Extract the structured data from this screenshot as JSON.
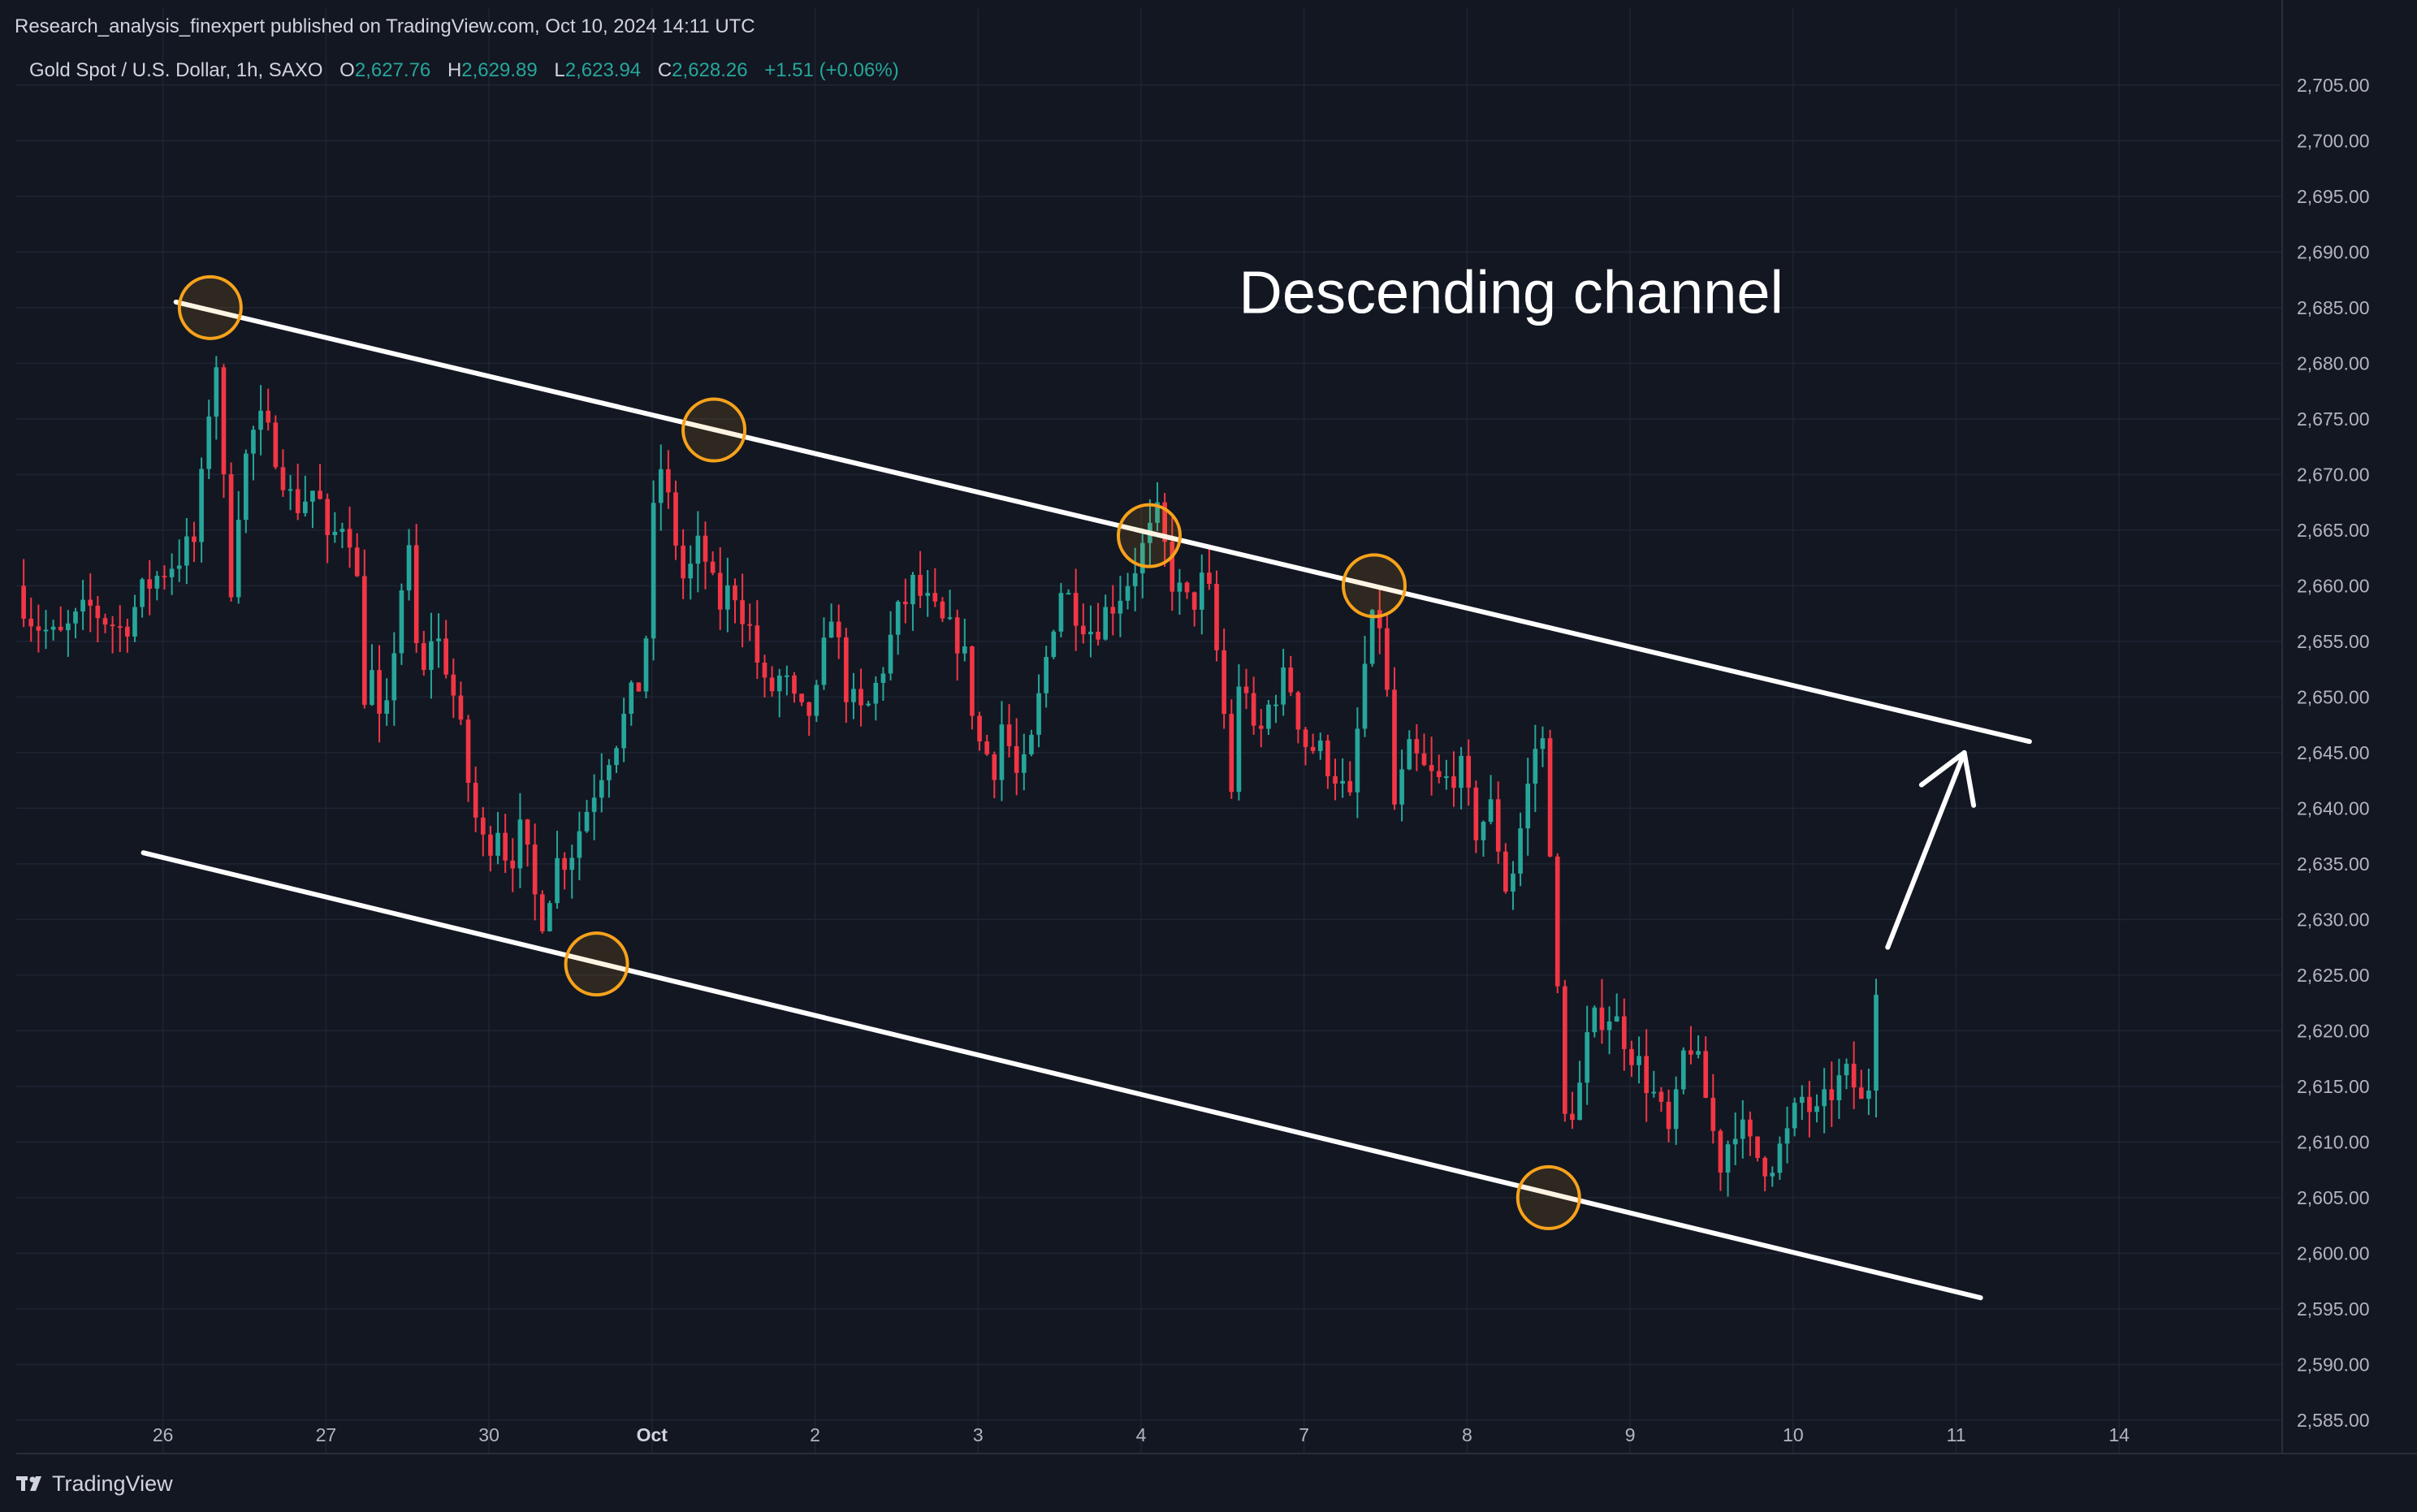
{
  "header": {
    "published": "Research_analysis_finexpert published on TradingView.com, Oct 10, 2024 14:11 UTC",
    "symbol": "Gold Spot / U.S. Dollar, 1h, SAXO",
    "o_label": "O",
    "o_value": "2,627.76",
    "h_label": "H",
    "h_value": "2,629.89",
    "l_label": "L",
    "l_value": "2,623.94",
    "c_label": "C",
    "c_value": "2,628.26",
    "change": "+1.51 (+0.06%)"
  },
  "brand": {
    "name": "TradingView"
  },
  "colors": {
    "background": "#131722",
    "up": "#26a69a",
    "down": "#f23645",
    "grid": "#1f2433",
    "channel": "#ffffff",
    "marker": "#f7a21b"
  },
  "chart_data": {
    "type": "candlestick",
    "title": "Gold Spot / U.S. Dollar, 1h, SAXO",
    "x_ticks": [
      {
        "label": "26",
        "t": 0.5,
        "bold": false
      },
      {
        "label": "27",
        "t": 1.5,
        "bold": false
      },
      {
        "label": "30",
        "t": 2.5,
        "bold": false
      },
      {
        "label": "Oct",
        "t": 3.5,
        "bold": true
      },
      {
        "label": "2",
        "t": 4.5,
        "bold": false
      },
      {
        "label": "3",
        "t": 5.5,
        "bold": false
      },
      {
        "label": "4",
        "t": 6.5,
        "bold": false
      },
      {
        "label": "7",
        "t": 7.5,
        "bold": false
      },
      {
        "label": "8",
        "t": 8.5,
        "bold": false
      },
      {
        "label": "9",
        "t": 9.5,
        "bold": false
      },
      {
        "label": "10",
        "t": 10.5,
        "bold": false
      },
      {
        "label": "11",
        "t": 11.5,
        "bold": false
      },
      {
        "label": "14",
        "t": 12.5,
        "bold": false
      }
    ],
    "x_range": [
      -0.4,
      13.5
    ],
    "y_range": [
      2582,
      2709
    ],
    "y_ticks": [
      2585,
      2590,
      2595,
      2600,
      2605,
      2610,
      2615,
      2620,
      2625,
      2630,
      2635,
      2640,
      2645,
      2650,
      2655,
      2660,
      2665,
      2670,
      2675,
      2680,
      2685,
      2690,
      2695,
      2700,
      2705
    ],
    "y_tick_labels": [
      "2,585.00",
      "2,590.00",
      "2,595.00",
      "2,600.00",
      "2,605.00",
      "2,610.00",
      "2,615.00",
      "2,620.00",
      "2,625.00",
      "2,630.00",
      "2,635.00",
      "2,640.00",
      "2,645.00",
      "2,650.00",
      "2,655.00",
      "2,660.00",
      "2,665.00",
      "2,670.00",
      "2,675.00",
      "2,680.00",
      "2,685.00",
      "2,690.00",
      "2,695.00",
      "2,700.00",
      "2,705.00"
    ],
    "close_path": [
      [
        -0.4,
        2660
      ],
      [
        -0.3,
        2657
      ],
      [
        -0.15,
        2655
      ],
      [
        0.05,
        2658
      ],
      [
        0.25,
        2656
      ],
      [
        0.4,
        2660
      ],
      [
        0.55,
        2662
      ],
      [
        0.7,
        2664
      ],
      [
        0.75,
        2671
      ],
      [
        0.82,
        2682
      ],
      [
        0.88,
        2667
      ],
      [
        0.92,
        2660
      ],
      [
        0.98,
        2670
      ],
      [
        1.08,
        2675
      ],
      [
        1.2,
        2672
      ],
      [
        1.3,
        2667
      ],
      [
        1.45,
        2669
      ],
      [
        1.5,
        2663
      ],
      [
        1.6,
        2666
      ],
      [
        1.68,
        2664
      ],
      [
        1.72,
        2650
      ],
      [
        1.78,
        2652
      ],
      [
        1.85,
        2645
      ],
      [
        1.92,
        2655
      ],
      [
        2.0,
        2664
      ],
      [
        2.08,
        2650
      ],
      [
        2.15,
        2656
      ],
      [
        2.22,
        2654
      ],
      [
        2.3,
        2649
      ],
      [
        2.4,
        2640
      ],
      [
        2.48,
        2636
      ],
      [
        2.55,
        2639
      ],
      [
        2.62,
        2635
      ],
      [
        2.7,
        2638
      ],
      [
        2.78,
        2632
      ],
      [
        2.84,
        2630
      ],
      [
        2.9,
        2635
      ],
      [
        3.0,
        2636
      ],
      [
        3.1,
        2640
      ],
      [
        3.2,
        2644
      ],
      [
        3.3,
        2647
      ],
      [
        3.38,
        2650
      ],
      [
        3.45,
        2652
      ],
      [
        3.5,
        2665
      ],
      [
        3.55,
        2671
      ],
      [
        3.62,
        2666
      ],
      [
        3.7,
        2660
      ],
      [
        3.8,
        2664
      ],
      [
        3.9,
        2658
      ],
      [
        4.0,
        2660
      ],
      [
        4.1,
        2656
      ],
      [
        4.2,
        2650
      ],
      [
        4.3,
        2652
      ],
      [
        4.4,
        2648
      ],
      [
        4.5,
        2649
      ],
      [
        4.6,
        2658
      ],
      [
        4.7,
        2650
      ],
      [
        4.8,
        2648
      ],
      [
        4.9,
        2652
      ],
      [
        5.0,
        2657
      ],
      [
        5.1,
        2660
      ],
      [
        5.2,
        2658
      ],
      [
        5.3,
        2656
      ],
      [
        5.4,
        2655
      ],
      [
        5.5,
        2646
      ],
      [
        5.6,
        2644
      ],
      [
        5.65,
        2648
      ],
      [
        5.75,
        2642
      ],
      [
        5.82,
        2645
      ],
      [
        5.9,
        2652
      ],
      [
        6.0,
        2660
      ],
      [
        6.1,
        2658
      ],
      [
        6.2,
        2656
      ],
      [
        6.3,
        2658
      ],
      [
        6.4,
        2660
      ],
      [
        6.5,
        2663
      ],
      [
        6.6,
        2666
      ],
      [
        6.7,
        2660
      ],
      [
        6.8,
        2658
      ],
      [
        6.9,
        2661
      ],
      [
        7.0,
        2650
      ],
      [
        7.05,
        2641
      ],
      [
        7.12,
        2654
      ],
      [
        7.2,
        2645
      ],
      [
        7.3,
        2650
      ],
      [
        7.4,
        2652
      ],
      [
        7.5,
        2646
      ],
      [
        7.6,
        2645
      ],
      [
        7.7,
        2643
      ],
      [
        7.78,
        2640
      ],
      [
        7.85,
        2650
      ],
      [
        7.9,
        2656
      ],
      [
        7.98,
        2657
      ],
      [
        8.05,
        2640
      ],
      [
        8.15,
        2645
      ],
      [
        8.25,
        2643
      ],
      [
        8.35,
        2642
      ],
      [
        8.45,
        2644
      ],
      [
        8.55,
        2638
      ],
      [
        8.65,
        2640
      ],
      [
        8.75,
        2632
      ],
      [
        8.85,
        2640
      ],
      [
        8.95,
        2648
      ],
      [
        9.0,
        2640
      ],
      [
        9.05,
        2624
      ],
      [
        9.1,
        2612
      ],
      [
        9.18,
        2614
      ],
      [
        9.25,
        2620
      ],
      [
        9.35,
        2622
      ],
      [
        9.45,
        2620
      ],
      [
        9.55,
        2617
      ],
      [
        9.65,
        2614
      ],
      [
        9.75,
        2610
      ],
      [
        9.85,
        2620
      ],
      [
        9.95,
        2615
      ],
      [
        10.05,
        2608
      ],
      [
        10.15,
        2612
      ],
      [
        10.25,
        2609
      ],
      [
        10.35,
        2608
      ],
      [
        10.45,
        2610
      ],
      [
        10.55,
        2614
      ],
      [
        10.65,
        2612
      ],
      [
        10.75,
        2615
      ],
      [
        10.85,
        2616
      ],
      [
        10.95,
        2612
      ],
      [
        11.0,
        2624
      ],
      [
        11.05,
        2628
      ]
    ],
    "channel": {
      "upper": [
        [
          0.58,
          2685.5
        ],
        [
          11.95,
          2646
        ]
      ],
      "lower": [
        [
          0.38,
          2636
        ],
        [
          11.65,
          2596
        ]
      ]
    },
    "markers": [
      {
        "t": 0.79,
        "p": 2685
      },
      {
        "t": 3.88,
        "p": 2674
      },
      {
        "t": 6.55,
        "p": 2664.5
      },
      {
        "t": 7.93,
        "p": 2660
      },
      {
        "t": 3.16,
        "p": 2626
      },
      {
        "t": 9.0,
        "p": 2605
      }
    ],
    "arrow": {
      "from": [
        11.08,
        2627.5
      ],
      "to": [
        11.55,
        2645
      ]
    },
    "annotation": {
      "text": "Descending channel",
      "t": 7.1,
      "p": 2684.5
    }
  }
}
